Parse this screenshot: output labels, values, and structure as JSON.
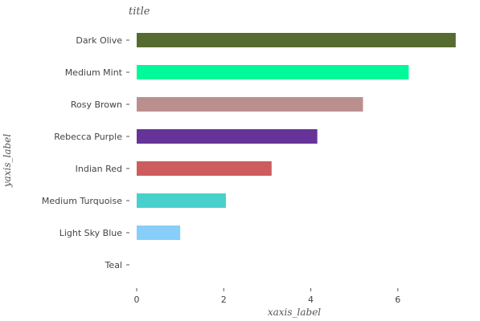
{
  "chart_data": {
    "type": "bar",
    "orientation": "horizontal",
    "title": "title",
    "xlabel": "xaxis_label",
    "ylabel": "yaxis_label",
    "categories": [
      "Dark Olive",
      "Medium Mint",
      "Rosy Brown",
      "Rebecca Purple",
      "Indian Red",
      "Medium Turquoise",
      "Light Sky Blue",
      "Teal"
    ],
    "values": [
      7.33,
      6.25,
      5.2,
      4.15,
      3.1,
      2.05,
      1.0,
      0.0
    ],
    "colors": [
      "#556b2f",
      "#00fa9a",
      "#bc8f8f",
      "#663399",
      "#cd5c5c",
      "#48d1cc",
      "#87cefa",
      "#008080"
    ],
    "xlim": [
      0,
      7.5
    ],
    "xticks": [
      0,
      2,
      4,
      6
    ],
    "xtick_labels": [
      "0",
      "2",
      "4",
      "6"
    ],
    "grid": false,
    "legend": "none"
  }
}
